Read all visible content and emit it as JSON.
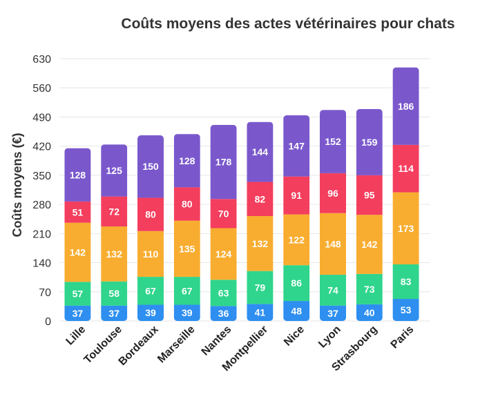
{
  "chart_data": {
    "type": "bar",
    "stacked": true,
    "title": "Coûts moyens des actes vétérinaires pour chats",
    "ylabel": "Coûts moyens (€)",
    "xlabel": "",
    "ylim": [
      0,
      630
    ],
    "yticks": [
      0,
      70,
      140,
      210,
      280,
      350,
      420,
      490,
      560,
      630
    ],
    "grid": true,
    "categories": [
      "Lille",
      "Toulouse",
      "Bordeaux",
      "Marseille",
      "Nantes",
      "Montpellier",
      "Nice",
      "Lyon",
      "Strasbourg",
      "Paris"
    ],
    "series": [
      {
        "color": "#2e8ff0",
        "values": [
          37,
          37,
          39,
          39,
          36,
          41,
          48,
          37,
          40,
          53
        ]
      },
      {
        "color": "#2fd58c",
        "values": [
          57,
          58,
          67,
          67,
          63,
          79,
          86,
          74,
          73,
          83
        ]
      },
      {
        "color": "#f8ad30",
        "values": [
          142,
          132,
          110,
          135,
          124,
          132,
          122,
          148,
          142,
          173
        ]
      },
      {
        "color": "#f43e5e",
        "values": [
          51,
          72,
          80,
          80,
          70,
          82,
          91,
          96,
          95,
          114
        ]
      },
      {
        "color": "#7a58cc",
        "values": [
          128,
          125,
          150,
          128,
          178,
          144,
          147,
          152,
          159,
          186
        ]
      }
    ]
  }
}
